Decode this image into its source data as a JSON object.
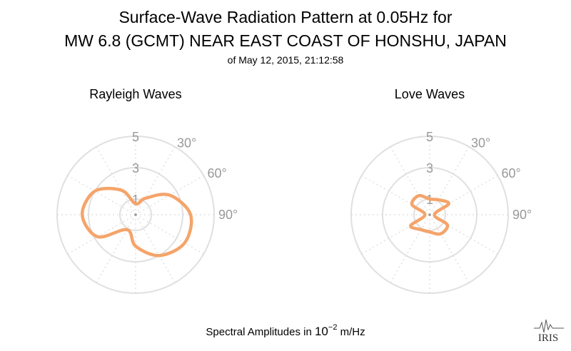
{
  "title_line1": "Surface-Wave Radiation Pattern at 0.05Hz for",
  "title_line2": "MW 6.8 (GCMT) NEAR EAST COAST OF HONSHU, JAPAN",
  "subtitle": "of May 12, 2015, 21:12:58",
  "caption_prefix": "Spectral Amplitudes in ",
  "caption_base": "10",
  "caption_exp": "−2",
  "caption_suffix": " m/Hz",
  "logo_text": "IRIS",
  "colors": {
    "pattern": "#F5A46A",
    "grid": "#E0E0E0",
    "tick": "#999999"
  },
  "chart_data": [
    {
      "type": "polar",
      "title": "Rayleigh Waves",
      "radial_ticks": [
        "1",
        "3",
        "5"
      ],
      "radial_tick_values": [
        1,
        3,
        5
      ],
      "rmax": 5,
      "angle_tick_labels": [
        "30°",
        "60°",
        "90°"
      ],
      "angle_direction": "clockwise from north",
      "grid": true,
      "series": [
        {
          "azimuth_deg": [
            0,
            30,
            60,
            90,
            120,
            150,
            180,
            210,
            240,
            270,
            300,
            330
          ],
          "amplitude": [
            0.7,
            1.2,
            2.5,
            3.5,
            3.6,
            3.0,
            2.0,
            1.1,
            2.8,
            3.4,
            3.0,
            1.8
          ]
        }
      ]
    },
    {
      "type": "polar",
      "title": "Love Waves",
      "radial_ticks": [
        "1",
        "3",
        "5"
      ],
      "radial_tick_values": [
        1,
        3,
        5
      ],
      "rmax": 5,
      "angle_tick_labels": [
        "30°",
        "60°",
        "90°"
      ],
      "angle_direction": "clockwise from north",
      "grid": true,
      "series": [
        {
          "azimuth_deg": [
            0,
            30,
            60,
            90,
            120,
            150,
            180,
            210,
            240,
            270,
            300,
            330
          ],
          "amplitude": [
            1.0,
            1.1,
            1.4,
            0.3,
            1.3,
            1.4,
            1.1,
            1.1,
            1.4,
            0.3,
            1.3,
            1.4
          ]
        }
      ]
    }
  ]
}
